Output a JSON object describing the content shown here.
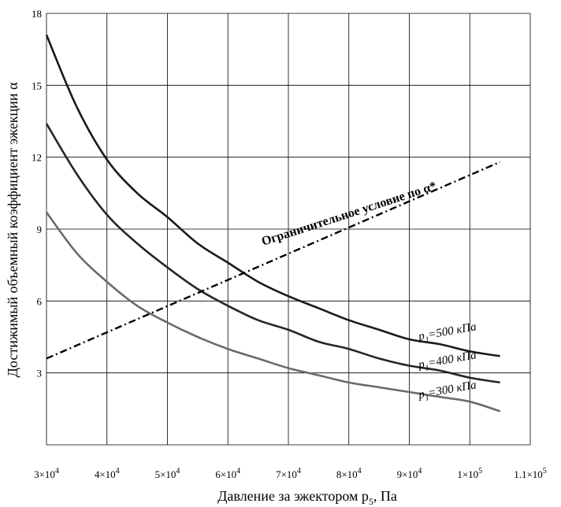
{
  "chart_data": {
    "type": "line",
    "title": "",
    "xlabel": "Давление за эжектором p",
    "xlabel_sub": "5",
    "xlabel_unit": ", Па",
    "ylabel": "Достижимый объемный коэффициент эжекции α",
    "xlim": [
      30000,
      110000
    ],
    "ylim": [
      0,
      18
    ],
    "grid": true,
    "x_ticks": [
      30000,
      40000,
      50000,
      60000,
      70000,
      80000,
      90000,
      100000,
      110000
    ],
    "x_tick_labels": [
      "3×10^4",
      "4×10^4",
      "5×10^4",
      "6×10^4",
      "7×10^4",
      "8×10^4",
      "9×10^4",
      "1×10^5",
      "1.1×10^5"
    ],
    "y_ticks": [
      0,
      3,
      6,
      9,
      12,
      15,
      18
    ],
    "y_tick_labels": [
      "",
      "3",
      "6",
      "9",
      "12",
      "15",
      "18"
    ],
    "series": [
      {
        "name": "p1=500 кПа",
        "label_prefix": "p",
        "label_sub": "1",
        "label_rest": "=500 кПа",
        "color": "#1a1a1a",
        "style": "solid",
        "x": [
          30000,
          35000,
          40000,
          45000,
          50000,
          55000,
          60000,
          65000,
          70000,
          75000,
          80000,
          85000,
          90000,
          95000,
          100000,
          105000
        ],
        "y": [
          17.1,
          14.1,
          11.9,
          10.5,
          9.5,
          8.4,
          7.6,
          6.8,
          6.2,
          5.7,
          5.2,
          4.8,
          4.4,
          4.2,
          3.9,
          3.7
        ]
      },
      {
        "name": "p1=400 кПа",
        "label_prefix": "p",
        "label_sub": "1",
        "label_rest": "=400 кПа",
        "color": "#262626",
        "style": "solid",
        "x": [
          30000,
          35000,
          40000,
          45000,
          50000,
          55000,
          60000,
          65000,
          70000,
          75000,
          80000,
          85000,
          90000,
          95000,
          100000,
          105000
        ],
        "y": [
          13.4,
          11.3,
          9.6,
          8.4,
          7.4,
          6.5,
          5.8,
          5.2,
          4.8,
          4.3,
          4.0,
          3.6,
          3.3,
          3.1,
          2.8,
          2.6
        ]
      },
      {
        "name": "p1=300 кПа",
        "label_prefix": "p",
        "label_sub": "1",
        "label_rest": "=300 кПа",
        "color": "#6a6a6a",
        "style": "solid",
        "x": [
          30000,
          35000,
          40000,
          45000,
          50000,
          55000,
          60000,
          65000,
          70000,
          75000,
          80000,
          85000,
          90000,
          95000,
          100000,
          105000
        ],
        "y": [
          9.7,
          8.0,
          6.8,
          5.8,
          5.1,
          4.5,
          4.0,
          3.6,
          3.2,
          2.9,
          2.6,
          2.4,
          2.2,
          2.0,
          1.8,
          1.4
        ]
      },
      {
        "name": "Ограничительное условие по α*",
        "color": "#000000",
        "style": "dashdot",
        "x": [
          30000,
          105000
        ],
        "y": [
          3.6,
          11.8
        ]
      }
    ],
    "annotation": "Ограничительное условие по α*"
  }
}
